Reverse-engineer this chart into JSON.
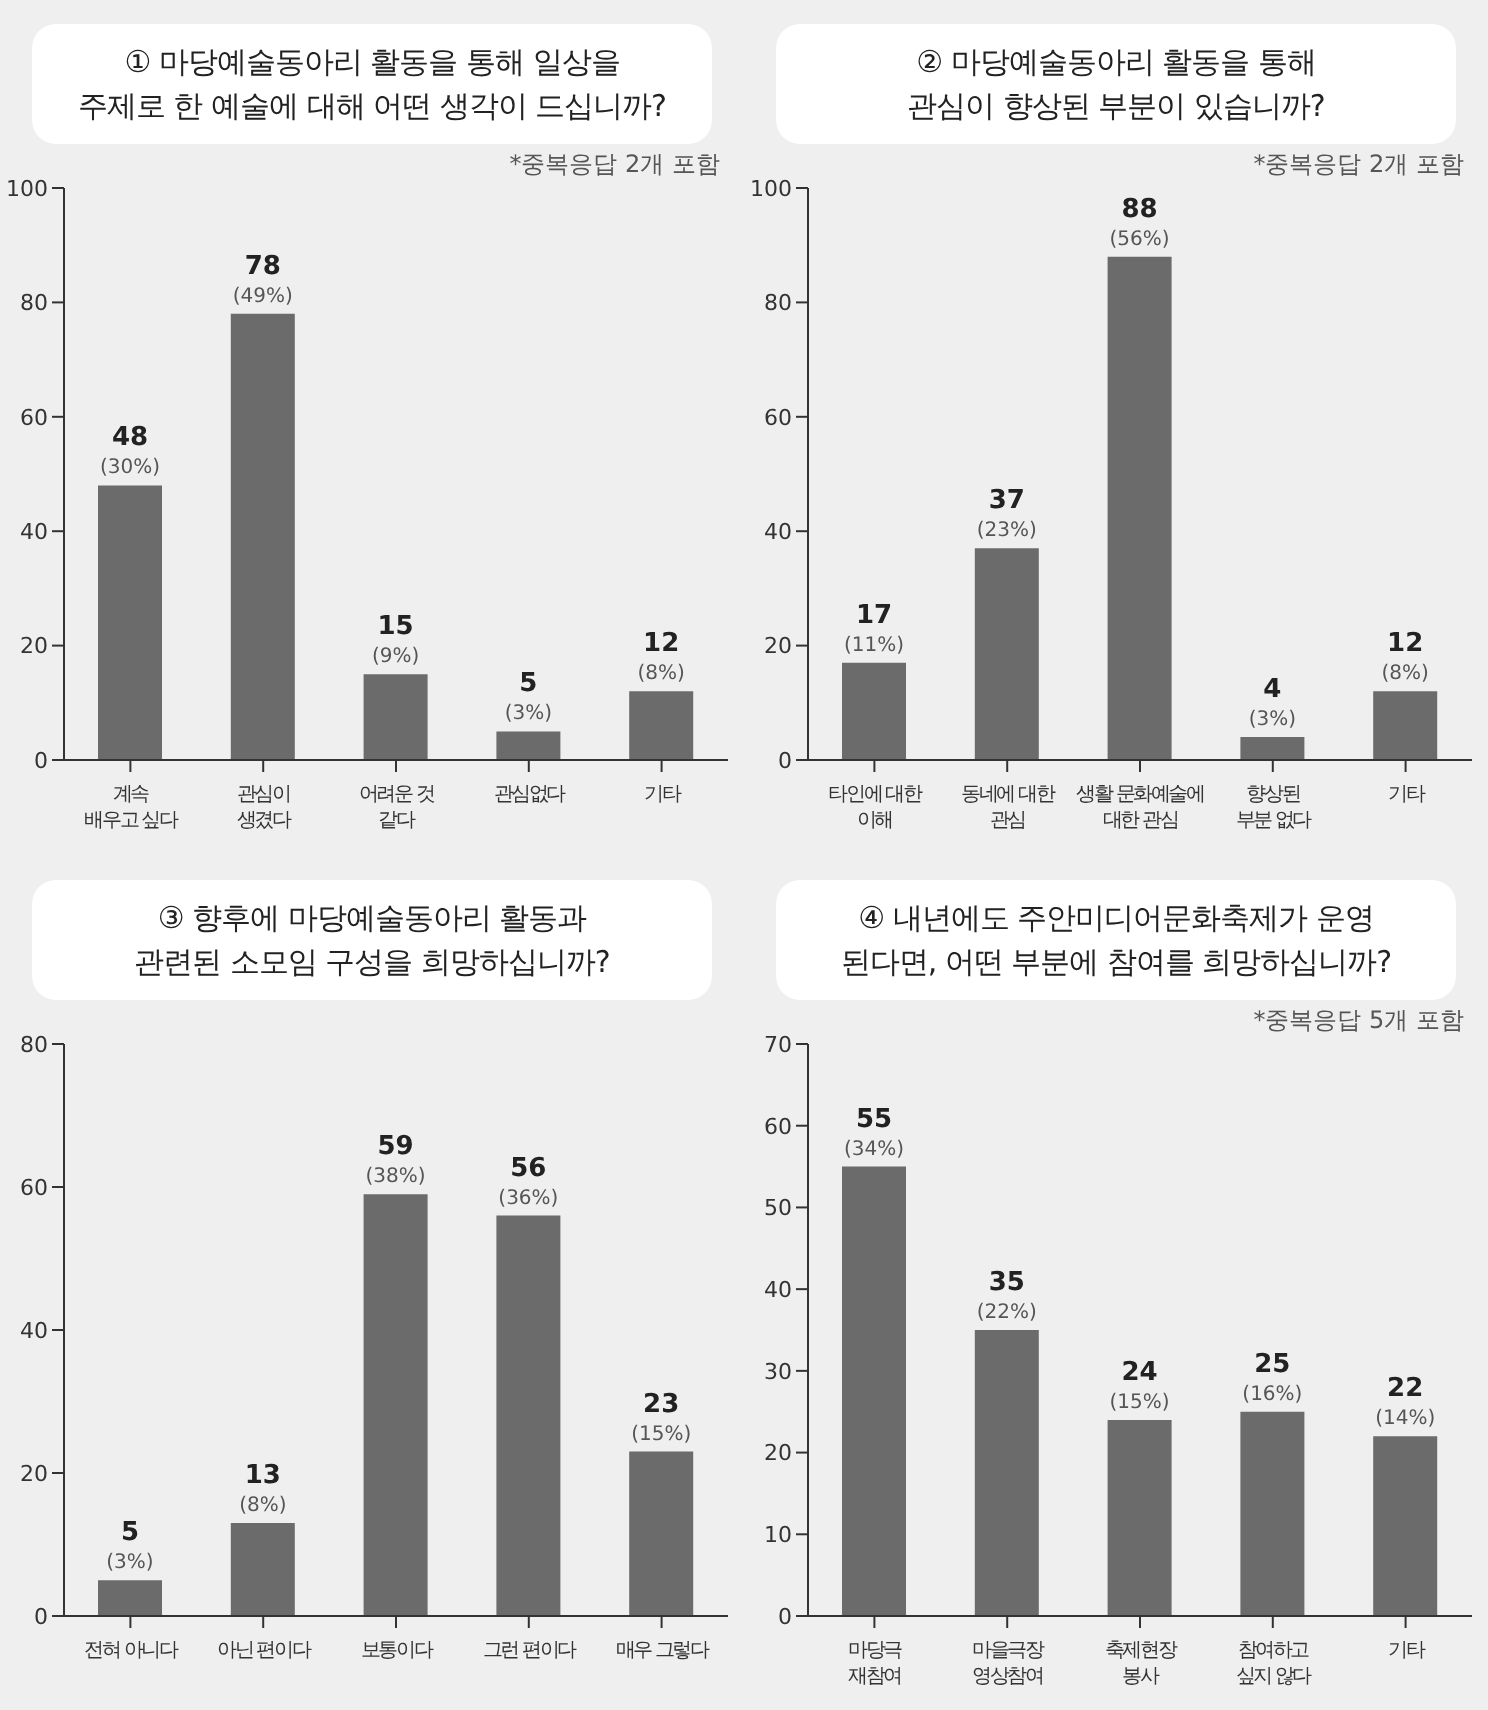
{
  "chart_data": [
    {
      "type": "bar",
      "title": "① 마당예술동아리 활동을 통해 일상을\n주제로 한 예술에 대해 어떤 생각이 드십니까?",
      "annotations": [
        "*중복응답  2개 포함"
      ],
      "categories": [
        "계속\n배우고 싶다",
        "관심이\n생겼다",
        "어려운 것\n같다",
        "관심없다",
        "기타"
      ],
      "values": [
        48,
        78,
        15,
        5,
        12
      ],
      "value_labels": [
        "48\n(30%)",
        "78\n(49%)",
        "15\n(9%)",
        "5\n(3%)",
        "12\n(8%)"
      ],
      "color": "#6b6b6b",
      "ylim": [
        0,
        100
      ],
      "yticks": [
        0,
        20,
        40,
        60,
        80,
        100
      ]
    },
    {
      "type": "bar",
      "title": "② 마당예술동아리 활동을 통해\n관심이 향상된 부분이 있습니까?",
      "annotations": [
        "*중복응답  2개 포함"
      ],
      "categories": [
        "타인에 대한\n이해",
        "동네에 대한\n관심",
        "생활 문화예술에\n대한 관심",
        "향상된\n부분 없다",
        "기타"
      ],
      "values": [
        17,
        37,
        88,
        4,
        12
      ],
      "value_labels": [
        "17\n(11%)",
        "37\n(23%)",
        "88\n(56%)",
        "4\n(3%)",
        "12\n(8%)"
      ],
      "color": "#6b6b6b",
      "ylim": [
        0,
        100
      ],
      "yticks": [
        0,
        20,
        40,
        60,
        80,
        100
      ]
    },
    {
      "type": "bar",
      "title": "③ 향후에 마당예술동아리 활동과\n관련된 소모임 구성을 희망하십니까?",
      "categories": [
        "전혀 아니다",
        "아닌 편이다",
        "보통이다",
        "그런 편이다",
        "매우 그렇다"
      ],
      "values": [
        5,
        13,
        59,
        56,
        23
      ],
      "value_labels": [
        "5\n(3%)",
        "13\n(8%)",
        "59\n(38%)",
        "56\n(36%)",
        "23\n(15%)"
      ],
      "color": "#6b6b6b",
      "ylim": [
        0,
        80
      ],
      "yticks": [
        0,
        20,
        40,
        60,
        80
      ]
    },
    {
      "type": "bar",
      "title": "④ 내년에도 주안미디어문화축제가 운영\n된다면, 어떤 부분에 참여를 희망하십니까?",
      "annotations": [
        "*중복응답  5개 포함"
      ],
      "categories": [
        "마당극\n재참여",
        "마을극장\n영상참여",
        "축제현장\n봉사",
        "참여하고\n싶지 않다",
        "기타"
      ],
      "values": [
        55,
        35,
        24,
        25,
        22
      ],
      "value_labels": [
        "55\n(34%)",
        "35\n(22%)",
        "24\n(15%)",
        "25\n(16%)",
        "22\n(14%)"
      ],
      "color": "#6b6b6b",
      "ylim": [
        0,
        70
      ],
      "yticks": [
        0,
        10,
        20,
        30,
        40,
        50,
        60,
        70
      ]
    }
  ]
}
